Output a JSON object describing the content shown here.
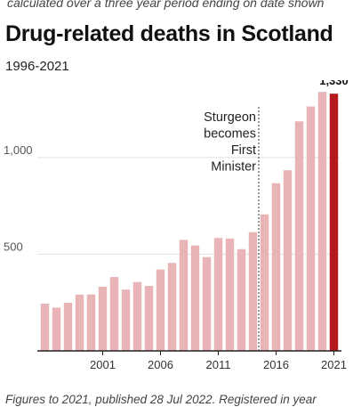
{
  "header": {
    "top_note": "calculated over a three year period ending on date shown",
    "title": "Drug-related deaths in Scotland",
    "subtitle": "1996-2021"
  },
  "footer": {
    "note": "Figures to 2021, published 28 Jul 2022. Registered in year"
  },
  "colors": {
    "bar": "#e8b4b5",
    "highlight": "#b5181d",
    "grid": "#e0e0e0",
    "axis": "#222222",
    "marker": "#555555"
  },
  "chart_data": {
    "type": "bar",
    "title": "Drug-related deaths in Scotland",
    "subtitle": "1996-2021",
    "xlabel": "",
    "ylabel": "",
    "categories": [
      1996,
      1997,
      1998,
      1999,
      2000,
      2001,
      2002,
      2003,
      2004,
      2005,
      2006,
      2007,
      2008,
      2009,
      2010,
      2011,
      2012,
      2013,
      2014,
      2015,
      2016,
      2017,
      2018,
      2019,
      2020,
      2021
    ],
    "values": [
      244,
      224,
      249,
      291,
      292,
      332,
      382,
      317,
      356,
      336,
      421,
      455,
      574,
      545,
      485,
      584,
      581,
      526,
      614,
      706,
      867,
      934,
      1187,
      1264,
      1339,
      1330
    ],
    "x_tick_labels": [
      "2001",
      "2006",
      "2011",
      "2016",
      "2021"
    ],
    "y_ticks": [
      500,
      1000
    ],
    "y_tick_labels": [
      "500",
      "1,000"
    ],
    "ylim": [
      0,
      1400
    ],
    "grid": true,
    "highlight": {
      "category": 2021,
      "label": "1,330"
    },
    "annotation": {
      "at_category": 2014.5,
      "lines": [
        "Sturgeon",
        "becomes",
        "First",
        "Minister"
      ]
    }
  }
}
